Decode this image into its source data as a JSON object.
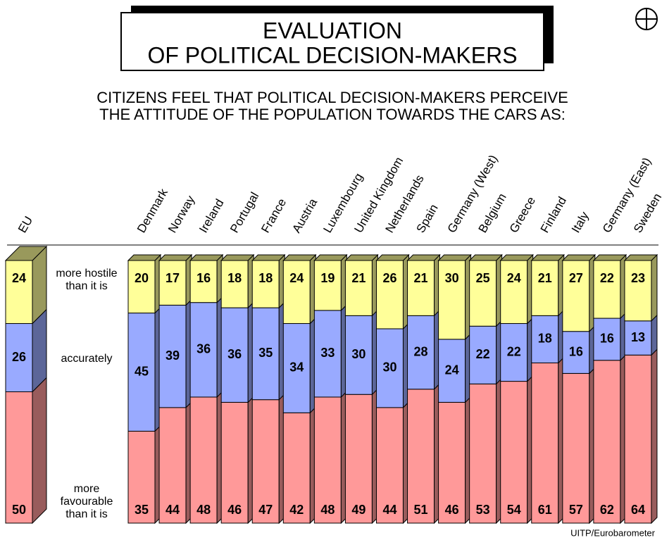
{
  "chart_data": {
    "type": "stacked_bar",
    "title": [
      "EVALUATION",
      "OF POLITICAL DECISION-MAKERS"
    ],
    "subtitle": [
      "CITIZENS FEEL THAT POLITICAL DECISION-MAKERS PERCEIVE",
      "THE ATTITUDE OF THE POPULATION TOWARDS THE CARS AS:"
    ],
    "source": "UITP/Eurobarometer",
    "categories": [
      "EU",
      "Denmark",
      "Norway",
      "Ireland",
      "Portugal",
      "France",
      "Austria",
      "Luxembourg",
      "United Kingdom",
      "Netherlands",
      "Spain",
      "Germany (West)",
      "Belgium",
      "Greece",
      "Finland",
      "Italy",
      "Germany (East)",
      "Sweden"
    ],
    "ylim": [
      0,
      100
    ],
    "series": [
      {
        "name": "more favourable than it is",
        "color": "#ff9999",
        "values": [
          50,
          35,
          44,
          48,
          46,
          47,
          42,
          48,
          49,
          44,
          51,
          46,
          53,
          54,
          61,
          57,
          62,
          64
        ]
      },
      {
        "name": "accurately",
        "color": "#99aaff",
        "values": [
          26,
          45,
          39,
          36,
          36,
          35,
          34,
          33,
          30,
          30,
          28,
          24,
          22,
          22,
          18,
          16,
          16,
          13
        ]
      },
      {
        "name": "more hostile than it is",
        "color": "#ffff99",
        "values": [
          24,
          20,
          17,
          16,
          18,
          18,
          24,
          19,
          21,
          26,
          21,
          30,
          25,
          24,
          21,
          27,
          22,
          23
        ]
      }
    ]
  }
}
